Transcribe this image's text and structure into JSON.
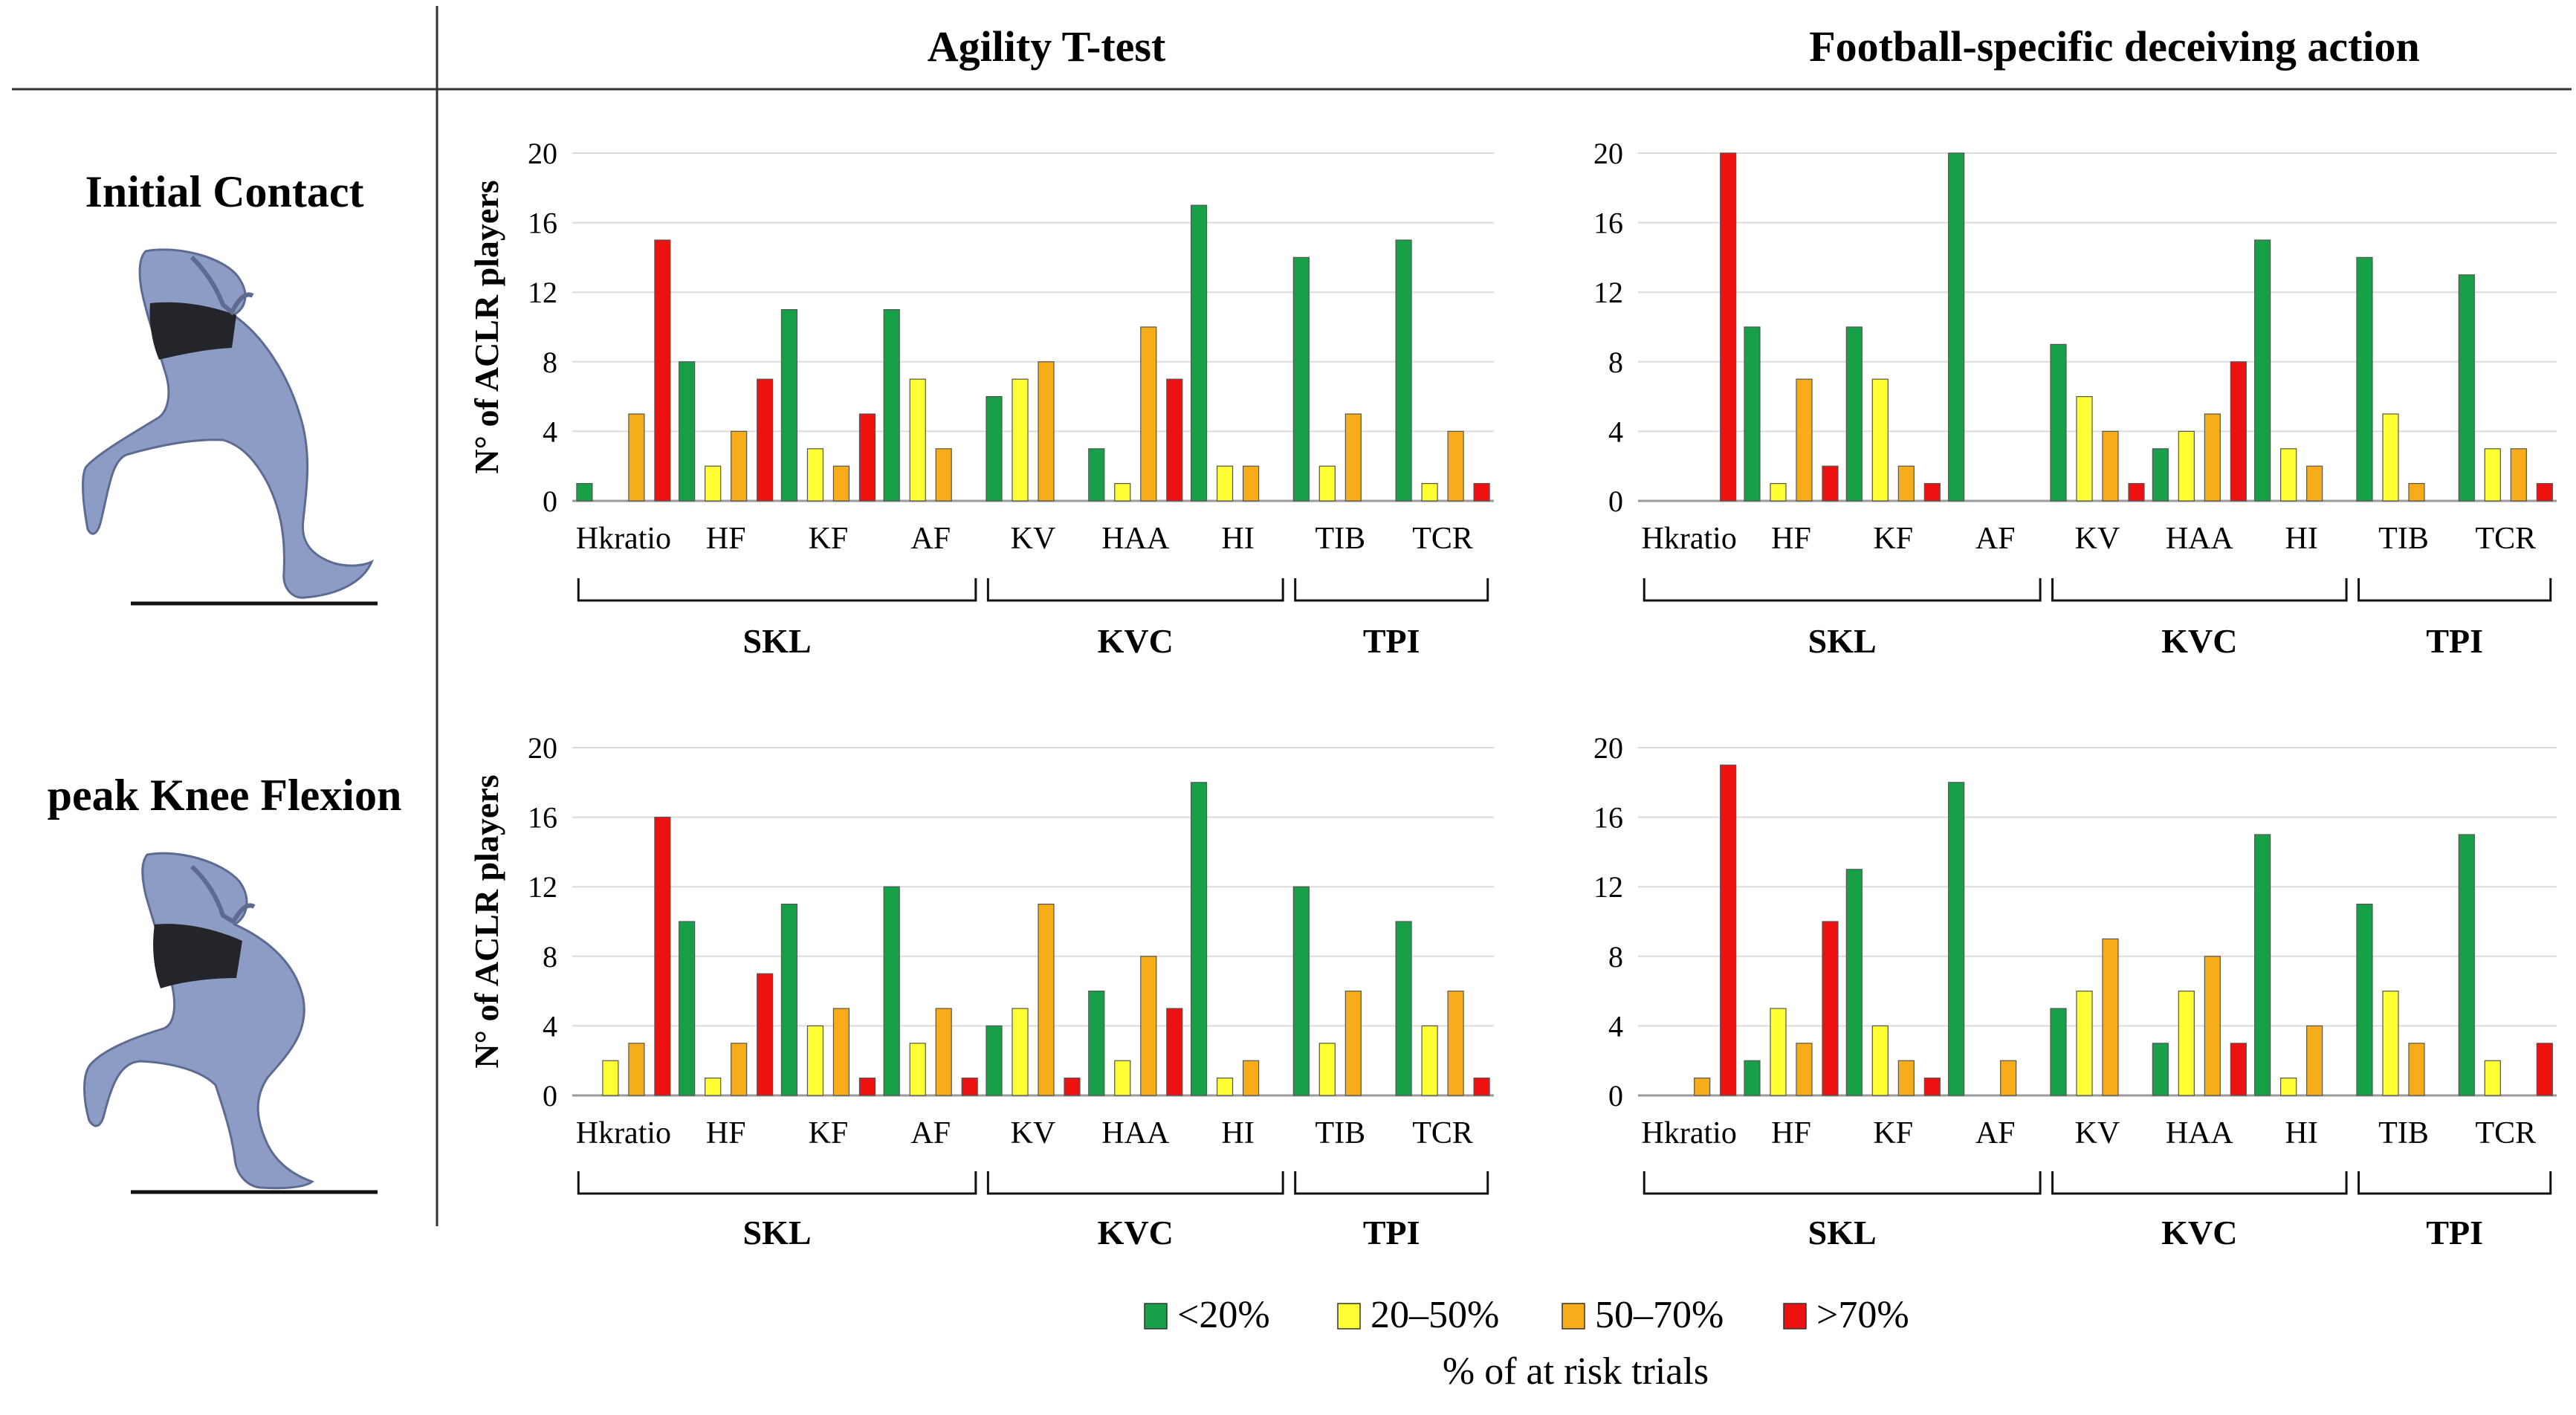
{
  "column_headers": [
    "Agility T-test",
    "Football-specific deceiving action"
  ],
  "row_headers": [
    "Initial Contact",
    "peak Knee Flexion"
  ],
  "ylabel": "N° of ACLR players",
  "groups": [
    {
      "label": "SKL",
      "categories": [
        "Hkratio",
        "HF",
        "KF",
        "AF"
      ]
    },
    {
      "label": "KVC",
      "categories": [
        "KV",
        "HAA",
        "HI"
      ]
    },
    {
      "label": "TPI",
      "categories": [
        "TIB",
        "TCR"
      ]
    }
  ],
  "legend": {
    "title": "% of at risk trials",
    "entries": [
      {
        "label": "<20%",
        "color": "#18a048"
      },
      {
        "label": "20–50%",
        "color": "#ffff33"
      },
      {
        "label": "50–70%",
        "color": "#f7ad19"
      },
      {
        "label": ">70%",
        "color": "#ee1111"
      }
    ]
  },
  "chart_data": [
    {
      "type": "bar",
      "title": "Agility T-test — Initial Contact",
      "ylabel": "N° of ACLR players",
      "ylim": [
        0,
        20
      ],
      "yticks": [
        0,
        4,
        8,
        12,
        16,
        20
      ],
      "categories": [
        "Hkratio",
        "HF",
        "KF",
        "AF",
        "KV",
        "HAA",
        "HI",
        "TIB",
        "TCR"
      ],
      "series": [
        {
          "name": "<20%",
          "values": [
            1,
            8,
            11,
            11,
            6,
            3,
            17,
            14,
            15
          ]
        },
        {
          "name": "20–50%",
          "values": [
            0,
            2,
            3,
            7,
            7,
            1,
            2,
            2,
            1
          ]
        },
        {
          "name": "50–70%",
          "values": [
            5,
            4,
            2,
            3,
            8,
            10,
            2,
            5,
            4
          ]
        },
        {
          "name": ">70%",
          "values": [
            15,
            7,
            5,
            0,
            0,
            7,
            0,
            0,
            1
          ]
        }
      ]
    },
    {
      "type": "bar",
      "title": "Football-specific deceiving action — Initial Contact",
      "ylabel": "N° of ACLR players",
      "ylim": [
        0,
        20
      ],
      "yticks": [
        0,
        4,
        8,
        12,
        16,
        20
      ],
      "categories": [
        "Hkratio",
        "HF",
        "KF",
        "AF",
        "KV",
        "HAA",
        "HI",
        "TIB",
        "TCR"
      ],
      "series": [
        {
          "name": "<20%",
          "values": [
            0,
            10,
            10,
            20,
            9,
            3,
            15,
            14,
            13
          ]
        },
        {
          "name": "20–50%",
          "values": [
            0,
            1,
            7,
            0,
            6,
            4,
            3,
            5,
            3
          ]
        },
        {
          "name": "50–70%",
          "values": [
            0,
            7,
            2,
            0,
            4,
            5,
            2,
            1,
            3
          ]
        },
        {
          "name": ">70%",
          "values": [
            20,
            2,
            1,
            0,
            1,
            8,
            0,
            0,
            1
          ]
        }
      ]
    },
    {
      "type": "bar",
      "title": "Agility T-test — peak Knee Flexion",
      "ylabel": "N° of ACLR players",
      "ylim": [
        0,
        20
      ],
      "yticks": [
        0,
        4,
        8,
        12,
        16,
        20
      ],
      "categories": [
        "Hkratio",
        "HF",
        "KF",
        "AF",
        "KV",
        "HAA",
        "HI",
        "TIB",
        "TCR"
      ],
      "series": [
        {
          "name": "<20%",
          "values": [
            0,
            10,
            11,
            12,
            4,
            6,
            18,
            12,
            10
          ]
        },
        {
          "name": "20–50%",
          "values": [
            2,
            1,
            4,
            3,
            5,
            2,
            1,
            3,
            4
          ]
        },
        {
          "name": "50–70%",
          "values": [
            3,
            3,
            5,
            5,
            11,
            8,
            2,
            6,
            6
          ]
        },
        {
          "name": ">70%",
          "values": [
            16,
            7,
            1,
            1,
            1,
            5,
            0,
            0,
            1
          ]
        }
      ]
    },
    {
      "type": "bar",
      "title": "Football-specific deceiving action — peak Knee Flexion",
      "ylabel": "N° of ACLR players",
      "ylim": [
        0,
        20
      ],
      "yticks": [
        0,
        4,
        8,
        12,
        16,
        20
      ],
      "categories": [
        "Hkratio",
        "HF",
        "KF",
        "AF",
        "KV",
        "HAA",
        "HI",
        "TIB",
        "TCR"
      ],
      "series": [
        {
          "name": "<20%",
          "values": [
            0,
            2,
            13,
            18,
            5,
            3,
            15,
            11,
            15
          ]
        },
        {
          "name": "20–50%",
          "values": [
            0,
            5,
            4,
            0,
            6,
            6,
            1,
            6,
            2
          ]
        },
        {
          "name": "50–70%",
          "values": [
            1,
            3,
            2,
            2,
            9,
            8,
            4,
            3,
            0
          ]
        },
        {
          "name": ">70%",
          "values": [
            19,
            10,
            1,
            0,
            0,
            3,
            0,
            0,
            3
          ]
        }
      ]
    }
  ]
}
